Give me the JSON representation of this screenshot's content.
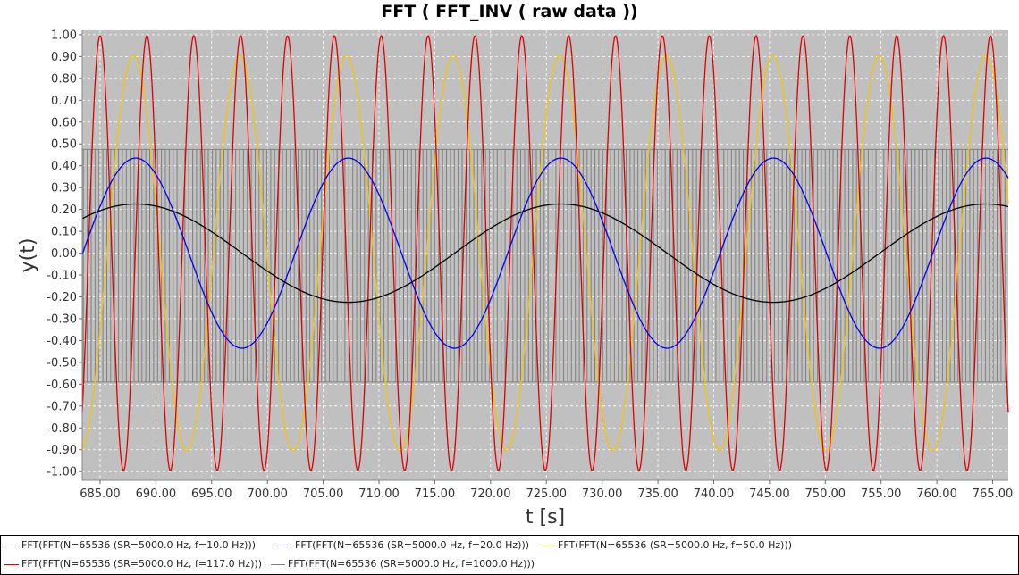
{
  "chart_data": {
    "type": "line",
    "title": "FFT ( FFT_INV ( raw data ))",
    "xlabel": "t [s]",
    "ylabel": "y(t)",
    "xlim": [
      683.4,
      766.4
    ],
    "ylim": [
      -1.04,
      1.02
    ],
    "grid": true,
    "background": "#c0c0c0",
    "legend_position": "bottom",
    "x_ticks": [
      685,
      690,
      695,
      700,
      705,
      710,
      715,
      720,
      725,
      730,
      735,
      740,
      745,
      750,
      755,
      760,
      765
    ],
    "x_tick_labels": [
      "685.00",
      "690.00",
      "695.00",
      "700.00",
      "705.00",
      "710.00",
      "715.00",
      "720.00",
      "725.00",
      "730.00",
      "735.00",
      "740.00",
      "745.00",
      "750.00",
      "755.00",
      "760.00",
      "765.00"
    ],
    "y_ticks": [
      1.0,
      0.9,
      0.8,
      0.7,
      0.6,
      0.5,
      0.4,
      0.3,
      0.2,
      0.1,
      0.0,
      -0.1,
      -0.2,
      -0.3,
      -0.4,
      -0.5,
      -0.6,
      -0.7,
      -0.8,
      -0.9,
      -1.0
    ],
    "y_tick_labels": [
      "1.00",
      "0.90",
      "0.80",
      "0.70",
      "0.60",
      "0.50",
      "0.40",
      "0.30",
      "0.20",
      "0.10",
      "0.00",
      "-0.10",
      "-0.20",
      "-0.30",
      "-0.40",
      "-0.50",
      "-0.60",
      "-0.70",
      "-0.80",
      "-0.90",
      "-1.00"
    ],
    "series": [
      {
        "name": "FFT(FFT(N=65536 (SR=5000.0 Hz, f=10.0 Hz)))",
        "color": "#000000",
        "shape": "sine",
        "amplitude": 0.225,
        "offset": 0.0,
        "period": 38.1,
        "peak_at": 688.2
      },
      {
        "name": "FFT(FFT(N=65536 (SR=5000.0 Hz, f=20.0 Hz)))",
        "color": "#0000ee",
        "shape": "sine",
        "amplitude": 0.435,
        "offset": 0.0,
        "period": 19.05,
        "peak_at": 688.2
      },
      {
        "name": "FFT(FFT(N=65536 (SR=5000.0 Hz, f=50.0 Hz)))",
        "color": "#f5c400",
        "shape": "sine",
        "amplitude": 0.905,
        "offset": 0.0,
        "period": 9.55,
        "peak_at": 688.0
      },
      {
        "name": "FFT(FFT(N=65536 (SR=5000.0 Hz, f=117.0 Hz)))",
        "color": "#e00000",
        "shape": "sine",
        "amplitude": 0.995,
        "offset": 0.0,
        "period": 4.2,
        "peak_at": 689.2
      },
      {
        "name": "FFT(FFT(N=65536 (SR=5000.0 Hz, f=1000.0 Hz)))",
        "color": "#808080",
        "shape": "dense-oscillation",
        "y_min": -0.59,
        "y_max": 0.475,
        "period": 0.35
      }
    ]
  }
}
